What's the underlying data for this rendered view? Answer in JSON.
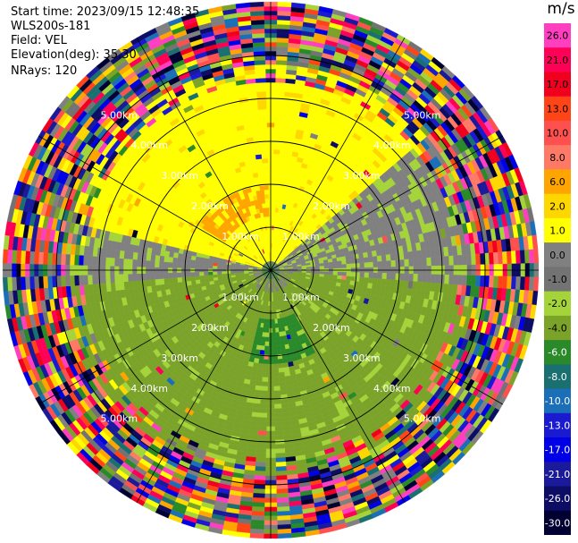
{
  "header": {
    "start_time": "Start time: 2023/09/15 12:48:35",
    "instrument": "WLS200s-181",
    "field": "Field: VEL",
    "elevation": "Elevation(deg): 35.30",
    "nrays": "NRays: 120"
  },
  "chart_data": {
    "type": "heatmap",
    "projection": "polar-ppi",
    "field": "VEL",
    "n_rays": 120,
    "range_rings_km": [
      1.0,
      2.0,
      3.0,
      4.0,
      5.0
    ],
    "range_ring_labels": [
      "1.00km",
      "2.00km",
      "3.00km",
      "4.00km",
      "5.00km"
    ],
    "spoke_angles_deg": [
      0,
      30,
      60,
      90,
      120,
      150,
      180,
      210,
      240,
      270,
      300,
      330
    ],
    "colorbar": {
      "unit": "m/s",
      "ticks": [
        "26.0",
        "21.0",
        "17.0",
        "13.0",
        "10.0",
        "8.0",
        "6.0",
        "2.0",
        "1.0",
        "0.0",
        "-1.0",
        "-2.0",
        "-4.0",
        "-6.0",
        "-8.0",
        "-10.0",
        "-13.0",
        "-17.0",
        "-21.0",
        "-26.0",
        "-30.0"
      ],
      "colors": [
        "#ff3fbf",
        "#ff0057",
        "#f0001e",
        "#ff4517",
        "#ff5050",
        "#ff7a66",
        "#ffa500",
        "#ffd700",
        "#ffff00",
        "#808080",
        "#737373",
        "#a5d43a",
        "#7ba32a",
        "#2a8a2a",
        "#1a7070",
        "#1a6fb8",
        "#1a1ad0",
        "#0000e6",
        "#1a1a9b",
        "#0d0d66",
        "#000033"
      ]
    },
    "regions_note_colors": {
      "approaching_near": "#ffff00",
      "receding_near": "#a5d43a",
      "zero": "#808080",
      "strong_receding": "#2a8a2a",
      "strong_approaching": "#ffa500"
    }
  }
}
